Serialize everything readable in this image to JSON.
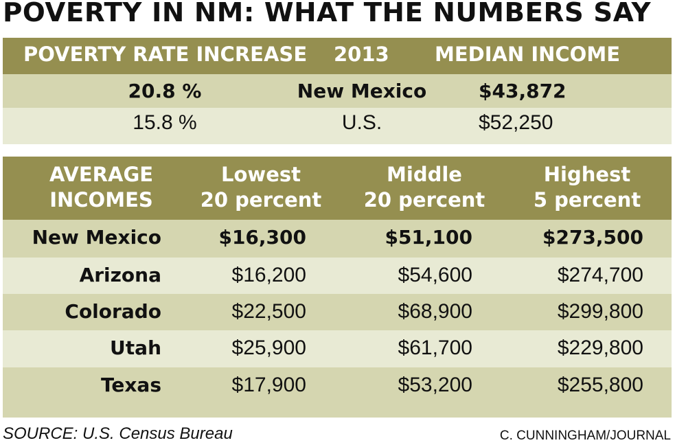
{
  "title": "POVERTY IN NM: WHAT THE NUMBERS SAY",
  "colors": {
    "header": "#958f50",
    "row_dark": "#d5d6b0",
    "row_light": "#e8ead4"
  },
  "top_table": {
    "headers": [
      "POVERTY RATE INCREASE",
      "2013",
      "MEDIAN INCOME"
    ],
    "rows": [
      {
        "rate": "20.8 %",
        "place": "New Mexico",
        "income": "$43,872"
      },
      {
        "rate": "15.8 %",
        "place": "U.S.",
        "income": "$52,250"
      }
    ]
  },
  "bottom_table": {
    "headers": [
      [
        "AVERAGE",
        "INCOMES"
      ],
      [
        "Lowest",
        "20 percent"
      ],
      [
        "Middle",
        "20 percent"
      ],
      [
        "Highest",
        "5 percent"
      ]
    ],
    "rows": [
      {
        "state": "New Mexico",
        "lowest": "$16,300",
        "middle": "$51,100",
        "highest": "$273,500"
      },
      {
        "state": "Arizona",
        "lowest": "$16,200",
        "middle": "$54,600",
        "highest": "$274,700"
      },
      {
        "state": "Colorado",
        "lowest": "$22,500",
        "middle": "$68,900",
        "highest": "$299,800"
      },
      {
        "state": "Utah",
        "lowest": "$25,900",
        "middle": "$61,700",
        "highest": "$229,800"
      },
      {
        "state": "Texas",
        "lowest": "$17,900",
        "middle": "$53,200",
        "highest": "$255,800"
      }
    ]
  },
  "chart_data": {
    "type": "table",
    "title": "POVERTY IN NM: WHAT THE NUMBERS SAY",
    "tables": [
      {
        "columns": [
          "POVERTY RATE INCREASE",
          "2013",
          "MEDIAN INCOME"
        ],
        "rows": [
          [
            "20.8 %",
            "New Mexico",
            "$43,872"
          ],
          [
            "15.8 %",
            "U.S.",
            "$52,250"
          ]
        ]
      },
      {
        "columns": [
          "AVERAGE INCOMES",
          "Lowest 20 percent",
          "Middle 20 percent",
          "Highest 5 percent"
        ],
        "rows": [
          [
            "New Mexico",
            16300,
            51100,
            273500
          ],
          [
            "Arizona",
            16200,
            54600,
            274700
          ],
          [
            "Colorado",
            22500,
            68900,
            299800
          ],
          [
            "Utah",
            25900,
            61700,
            229800
          ],
          [
            "Texas",
            17900,
            53200,
            255800
          ]
        ]
      }
    ]
  },
  "source": "SOURCE: U.S. Census Bureau",
  "credit": "C. CUNNINGHAM/JOURNAL"
}
